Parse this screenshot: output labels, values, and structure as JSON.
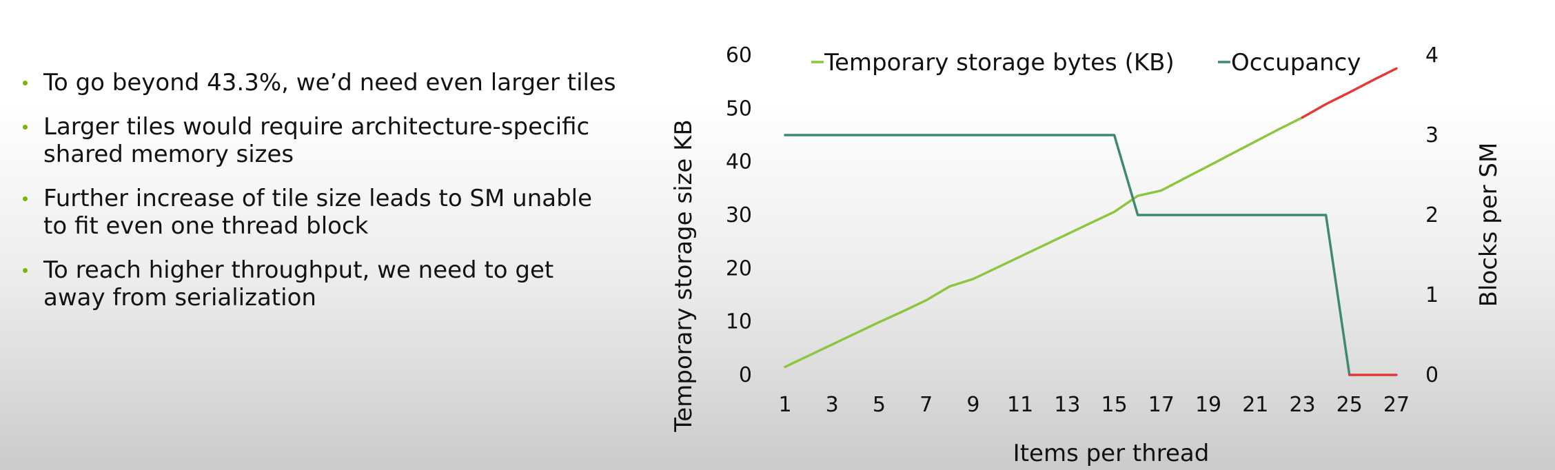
{
  "slide": {
    "bullets": [
      {
        "lines": [
          "To go beyond 43.3%, we’d need even larger tiles"
        ]
      },
      {
        "lines": [
          "Larger tiles would require architecture-specific",
          "shared memory sizes"
        ]
      },
      {
        "lines": [
          "Further increase of tile size leads to SM unable",
          "to fit even one thread block"
        ]
      },
      {
        "lines": [
          "To reach higher throughput, we need to get",
          "away from serialization"
        ]
      }
    ],
    "bullet_color": "#76b900"
  },
  "chart_data": {
    "type": "line",
    "title": "",
    "xlabel": "Items per thread",
    "ylabel_left": "Temporary storage size KB",
    "ylabel_right": "Blocks per SM",
    "x_ticks": [
      "1",
      "3",
      "5",
      "7",
      "9",
      "11",
      "13",
      "15",
      "17",
      "19",
      "21",
      "23",
      "25",
      "27"
    ],
    "y_left_ticks": [
      "0",
      "10",
      "20",
      "30",
      "40",
      "50",
      "60"
    ],
    "y_right_ticks": [
      "0",
      "1",
      "2",
      "3",
      "4"
    ],
    "xlim": [
      1,
      27
    ],
    "ylim_left": [
      0,
      60
    ],
    "ylim_right": [
      0,
      4
    ],
    "grid": false,
    "legend_position": "top",
    "series": [
      {
        "name": "Temporary storage bytes (KB)",
        "axis": "left",
        "color": "#8cc63f",
        "highlight_color": "#e53935",
        "highlight_from_x": 23,
        "x": [
          1,
          2,
          3,
          4,
          5,
          6,
          7,
          8,
          9,
          10,
          11,
          12,
          13,
          14,
          15,
          16,
          17,
          18,
          19,
          20,
          21,
          22,
          23,
          24,
          25,
          26,
          27
        ],
        "values": [
          1.5,
          3.6,
          5.7,
          7.8,
          9.9,
          11.9,
          14.0,
          16.6,
          18.0,
          20.1,
          22.2,
          24.3,
          26.4,
          28.5,
          30.6,
          33.6,
          34.6,
          36.9,
          39.2,
          41.5,
          43.8,
          46.1,
          48.3,
          50.8,
          53.0,
          55.3,
          57.5
        ]
      },
      {
        "name": "Occupancy",
        "axis": "right",
        "color": "#3f8a6e",
        "highlight_color": "#e53935",
        "highlight_from_x": 25,
        "x": [
          1,
          15,
          16,
          24,
          25,
          27
        ],
        "values": [
          3,
          3,
          2,
          2,
          0,
          0
        ]
      }
    ]
  }
}
